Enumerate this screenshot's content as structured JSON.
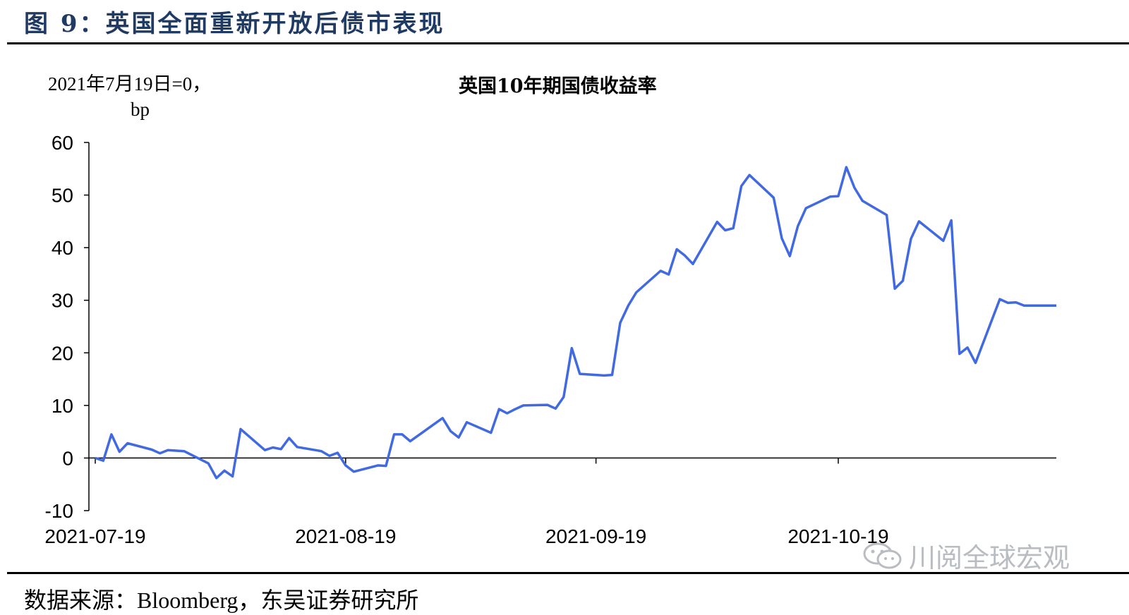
{
  "figure": {
    "title": "图 9：英国全面重新开放后债市表现",
    "source": "数据来源：Bloomberg，东吴证券研究所",
    "watermark": "川阅全球宏观",
    "watermark_icon": "wechat-icon"
  },
  "chart_data": {
    "type": "line",
    "title": "英国10年期国债收益率",
    "ylabel_line1": "2021年7月19日=0，",
    "ylabel_line2": "bp",
    "xlabel": "",
    "ylim": [
      -10,
      60
    ],
    "yticks": [
      60,
      50,
      40,
      30,
      20,
      10,
      0,
      -10
    ],
    "xlim": [
      "2021-07-19",
      "2021-11-15"
    ],
    "xticks": [
      "2021-07-19",
      "2021-08-19",
      "2021-09-19",
      "2021-10-19"
    ],
    "grid": false,
    "legend": "none",
    "color": "#4169e1",
    "series": [
      {
        "x": [
          "2021-07-19",
          "2021-07-20",
          "2021-07-21",
          "2021-07-22",
          "2021-07-23",
          "2021-07-26",
          "2021-07-27",
          "2021-07-28",
          "2021-07-29",
          "2021-07-30",
          "2021-08-02",
          "2021-08-03",
          "2021-08-04",
          "2021-08-05",
          "2021-08-06",
          "2021-08-09",
          "2021-08-10",
          "2021-08-11",
          "2021-08-12",
          "2021-08-13",
          "2021-08-16",
          "2021-08-17",
          "2021-08-18",
          "2021-08-19",
          "2021-08-20",
          "2021-08-23",
          "2021-08-24",
          "2021-08-25",
          "2021-08-26",
          "2021-08-27",
          "2021-08-31",
          "2021-09-01",
          "2021-09-02",
          "2021-09-03",
          "2021-09-06",
          "2021-09-07",
          "2021-09-08",
          "2021-09-09",
          "2021-09-10",
          "2021-09-13",
          "2021-09-14",
          "2021-09-15",
          "2021-09-16",
          "2021-09-17",
          "2021-09-20",
          "2021-09-21",
          "2021-09-22",
          "2021-09-23",
          "2021-09-24",
          "2021-09-27",
          "2021-09-28",
          "2021-09-29",
          "2021-09-30",
          "2021-10-01",
          "2021-10-04",
          "2021-10-05",
          "2021-10-06",
          "2021-10-07",
          "2021-10-08",
          "2021-10-11",
          "2021-10-12",
          "2021-10-13",
          "2021-10-14",
          "2021-10-15",
          "2021-10-18",
          "2021-10-19",
          "2021-10-20",
          "2021-10-21",
          "2021-10-22",
          "2021-10-25",
          "2021-10-26",
          "2021-10-27",
          "2021-10-28",
          "2021-10-29",
          "2021-11-01",
          "2021-11-02",
          "2021-11-03",
          "2021-11-04",
          "2021-11-05",
          "2021-11-08",
          "2021-11-09",
          "2021-11-10",
          "2021-11-11",
          "2021-11-12",
          "2021-11-15"
        ],
        "values": [
          0,
          -0.5,
          4.5,
          1.2,
          2.8,
          1.6,
          0.9,
          1.5,
          1.4,
          1.3,
          -1,
          -3.8,
          -2.4,
          -3.5,
          5.5,
          1.5,
          2,
          1.7,
          3.8,
          2.1,
          1.3,
          0.4,
          1,
          -1.4,
          -2.6,
          -1.4,
          -1.5,
          4.5,
          4.5,
          3.2,
          7.6,
          5.1,
          3.9,
          6.8,
          4.8,
          9.3,
          8.5,
          9.3,
          10,
          10.1,
          9.4,
          11.6,
          20.9,
          16,
          15.7,
          15.8,
          25.7,
          29,
          31.5,
          35.6,
          34.9,
          39.7,
          38.5,
          36.9,
          44.9,
          43.3,
          43.7,
          51.7,
          53.8,
          49.5,
          41.8,
          38.4,
          44.1,
          47.5,
          49.7,
          49.8,
          55.3,
          51.4,
          48.9,
          46.2,
          32.2,
          33.7,
          41.7,
          45,
          41.3,
          45.2,
          19.8,
          21,
          18.1,
          30.2,
          29.5,
          29.6,
          29,
          29,
          29
        ]
      }
    ]
  }
}
